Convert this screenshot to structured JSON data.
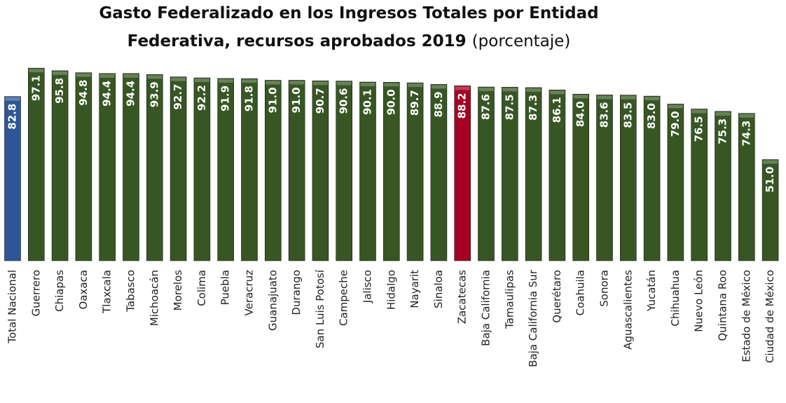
{
  "chart_data": {
    "type": "bar",
    "title": [
      "Gasto Federalizado en los Ingresos Totales por Entidad",
      "Federativa, recursos aprobados 2019"
    ],
    "subtitle": "(porcentaje)",
    "categories": [
      "Total Nacional",
      "Guerrero",
      "Chiapas",
      "Oaxaca",
      "Tlaxcala",
      "Tabasco",
      "Michoacán",
      "Morelos",
      "Colima",
      "Puebla",
      "Veracruz",
      "Guanajuato",
      "Durango",
      "San Luis Potosí",
      "Campeche",
      "Jalisco",
      "Hidalgo",
      "Nayarit",
      "Sinaloa",
      "Zacatecas",
      "Baja California",
      "Tamaulipas",
      "Baja California Sur",
      "Querétaro",
      "Coahuila",
      "Sonora",
      "Aguascalientes",
      "Yucatán",
      "Chihuahua",
      "Nuevo León",
      "Quintana Roo",
      "Estado de México",
      "Ciudad de México"
    ],
    "values": [
      82.8,
      97.1,
      95.8,
      94.8,
      94.4,
      94.4,
      93.9,
      92.7,
      92.2,
      91.9,
      91.8,
      91.0,
      91.0,
      90.7,
      90.6,
      90.1,
      90.0,
      89.7,
      88.9,
      88.2,
      87.6,
      87.5,
      87.3,
      86.1,
      84.0,
      83.6,
      83.5,
      83.0,
      79.0,
      76.5,
      75.3,
      74.3,
      51.0
    ],
    "value_labels": [
      "82.8",
      "97.1",
      "95.8",
      "94.8",
      "94.4",
      "94.4",
      "93.9",
      "92.7",
      "92.2",
      "91.9",
      "91.8",
      "91.0",
      "91.0",
      "90.7",
      "90.6",
      "90.1",
      "90.0",
      "89.7",
      "88.9",
      "88.2",
      "87.6",
      "87.5",
      "87.3",
      "86.1",
      "84.0",
      "83.6",
      "83.5",
      "83.0",
      "79.0",
      "76.5",
      "75.3",
      "74.3",
      "51.0"
    ],
    "colors": [
      "#2e5597",
      "#375623",
      "#375623",
      "#375623",
      "#375623",
      "#375623",
      "#375623",
      "#375623",
      "#375623",
      "#375623",
      "#375623",
      "#375623",
      "#375623",
      "#375623",
      "#375623",
      "#375623",
      "#375623",
      "#375623",
      "#375623",
      "#a50021",
      "#375623",
      "#375623",
      "#375623",
      "#375623",
      "#375623",
      "#375623",
      "#375623",
      "#375623",
      "#375623",
      "#375623",
      "#375623",
      "#375623",
      "#375623"
    ]
  }
}
